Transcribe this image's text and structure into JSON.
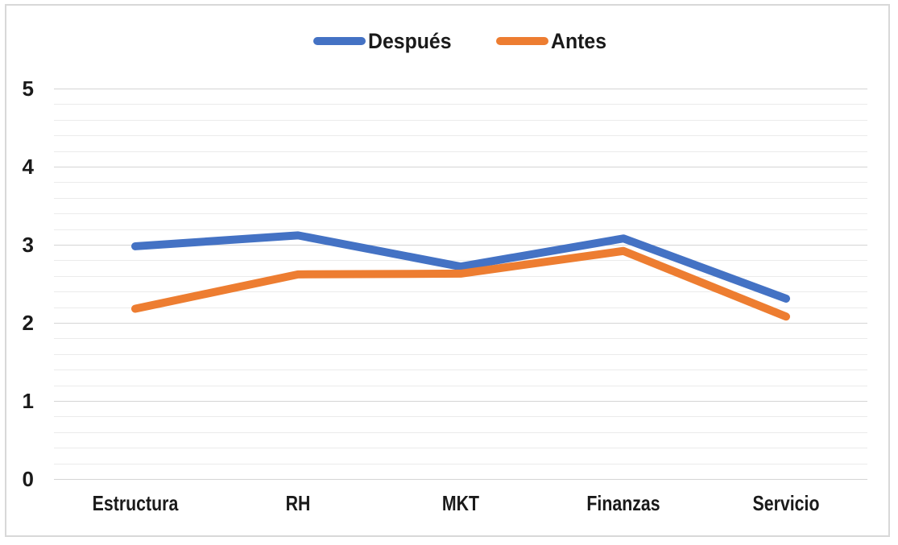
{
  "chart_data": {
    "type": "line",
    "title": "",
    "xlabel": "",
    "ylabel": "",
    "categories": [
      "Estructura",
      "RH",
      "MKT",
      "Finanzas",
      "Servicio"
    ],
    "series": [
      {
        "name": "Después",
        "color": "#4472C4",
        "values": [
          2.98,
          3.12,
          2.72,
          3.08,
          2.31
        ]
      },
      {
        "name": "Antes",
        "color": "#ED7D31",
        "values": [
          2.18,
          2.62,
          2.63,
          2.92,
          2.08
        ]
      }
    ],
    "ylim": [
      0,
      5
    ],
    "y_ticks": [
      5,
      4,
      3,
      2,
      1,
      0
    ],
    "minor_step": 0.2,
    "grid_on": true,
    "legend_position": "top-center",
    "style": {
      "line_width": 10,
      "major_grid_color": "#D5D5D5",
      "minor_grid_color": "#EBEBEB",
      "text_color": "#1A1A1A",
      "frame_border_color": "#D8D8D8",
      "background": "#FFFFFF"
    }
  }
}
